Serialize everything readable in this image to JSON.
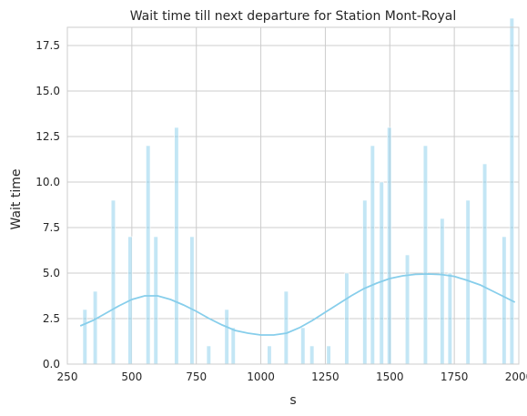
{
  "chart_data": {
    "type": "bar",
    "title": "Wait time till next departure for Station Mont-Royal",
    "xlabel": "s",
    "ylabel": "Wait time",
    "xlim": [
      250,
      2000
    ],
    "ylim": [
      0,
      18.5
    ],
    "xticks": [
      250,
      500,
      750,
      1000,
      1250,
      1500,
      1750,
      2000
    ],
    "yticks": [
      0.0,
      2.5,
      5.0,
      7.5,
      10.0,
      12.5,
      15.0,
      17.5
    ],
    "xtick_labels": [
      "250",
      "500",
      "750",
      "1000",
      "1250",
      "1500",
      "1750",
      "2000"
    ],
    "ytick_labels": [
      "0.0",
      "2.5",
      "5.0",
      "7.5",
      "10.0",
      "12.5",
      "15.0",
      "17.5"
    ],
    "grid": true,
    "bin_width": 16,
    "color": "#87ceeb",
    "bars": [
      {
        "x": 310,
        "value": 3
      },
      {
        "x": 350,
        "value": 4
      },
      {
        "x": 420,
        "value": 9
      },
      {
        "x": 485,
        "value": 7
      },
      {
        "x": 555,
        "value": 12
      },
      {
        "x": 585,
        "value": 7
      },
      {
        "x": 665,
        "value": 13
      },
      {
        "x": 725,
        "value": 7
      },
      {
        "x": 790,
        "value": 1
      },
      {
        "x": 860,
        "value": 3
      },
      {
        "x": 885,
        "value": 2
      },
      {
        "x": 1025,
        "value": 1
      },
      {
        "x": 1090,
        "value": 4
      },
      {
        "x": 1155,
        "value": 2
      },
      {
        "x": 1190,
        "value": 1
      },
      {
        "x": 1255,
        "value": 1
      },
      {
        "x": 1325,
        "value": 5
      },
      {
        "x": 1395,
        "value": 9
      },
      {
        "x": 1425,
        "value": 12
      },
      {
        "x": 1460,
        "value": 10
      },
      {
        "x": 1490,
        "value": 13
      },
      {
        "x": 1560,
        "value": 6
      },
      {
        "x": 1630,
        "value": 12
      },
      {
        "x": 1695,
        "value": 8
      },
      {
        "x": 1725,
        "value": 5
      },
      {
        "x": 1795,
        "value": 9
      },
      {
        "x": 1860,
        "value": 11
      },
      {
        "x": 1935,
        "value": 7
      },
      {
        "x": 1965,
        "value": 19
      }
    ],
    "kde": {
      "x": [
        300,
        350,
        400,
        450,
        500,
        550,
        600,
        650,
        700,
        750,
        800,
        850,
        900,
        950,
        1000,
        1050,
        1100,
        1150,
        1200,
        1250,
        1300,
        1350,
        1400,
        1450,
        1500,
        1550,
        1600,
        1650,
        1700,
        1750,
        1800,
        1850,
        1900,
        1950,
        1985
      ],
      "y": [
        2.1,
        2.4,
        2.8,
        3.2,
        3.55,
        3.75,
        3.75,
        3.55,
        3.25,
        2.9,
        2.5,
        2.15,
        1.85,
        1.7,
        1.6,
        1.6,
        1.7,
        2.0,
        2.4,
        2.85,
        3.3,
        3.75,
        4.15,
        4.45,
        4.7,
        4.85,
        4.93,
        4.95,
        4.92,
        4.82,
        4.6,
        4.35,
        4.0,
        3.65,
        3.4
      ]
    }
  }
}
